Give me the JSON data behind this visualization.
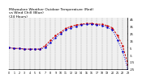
{
  "title": "Milwaukee Weather Outdoor Temperature (Red)\nvs Wind Chill (Blue)\n(24 Hours)",
  "title_fontsize": 3.2,
  "background_color": "#ffffff",
  "plot_bg_color": "#f0f0f0",
  "grid_color": "#888888",
  "ylim": [
    -25,
    47
  ],
  "xlim": [
    0,
    23
  ],
  "yticks": [
    45,
    35,
    25,
    15,
    5,
    -5,
    -15,
    -25
  ],
  "ytick_labels": [
    "45",
    "35",
    "25",
    "15",
    "5",
    "-5",
    "-15",
    "-25"
  ],
  "ytick_fontsize": 2.8,
  "xtick_fontsize": 2.3,
  "hours": [
    0,
    1,
    2,
    3,
    4,
    5,
    6,
    7,
    8,
    9,
    10,
    11,
    12,
    13,
    14,
    15,
    16,
    17,
    18,
    19,
    20,
    21,
    22,
    23
  ],
  "temp_red": [
    5,
    4,
    4,
    3,
    3,
    3,
    3,
    8,
    15,
    22,
    27,
    32,
    35,
    37,
    38,
    39,
    39,
    38,
    38,
    36,
    33,
    22,
    8,
    -18
  ],
  "wind_chill_blue": [
    5,
    4,
    4,
    3,
    3,
    3,
    3,
    5,
    12,
    19,
    25,
    30,
    33,
    35,
    37,
    38,
    38,
    37,
    36,
    34,
    30,
    16,
    0,
    -25
  ],
  "red_color": "#cc0000",
  "blue_color": "#0000cc",
  "line_linewidth": 0.7,
  "marker_size": 1.5
}
